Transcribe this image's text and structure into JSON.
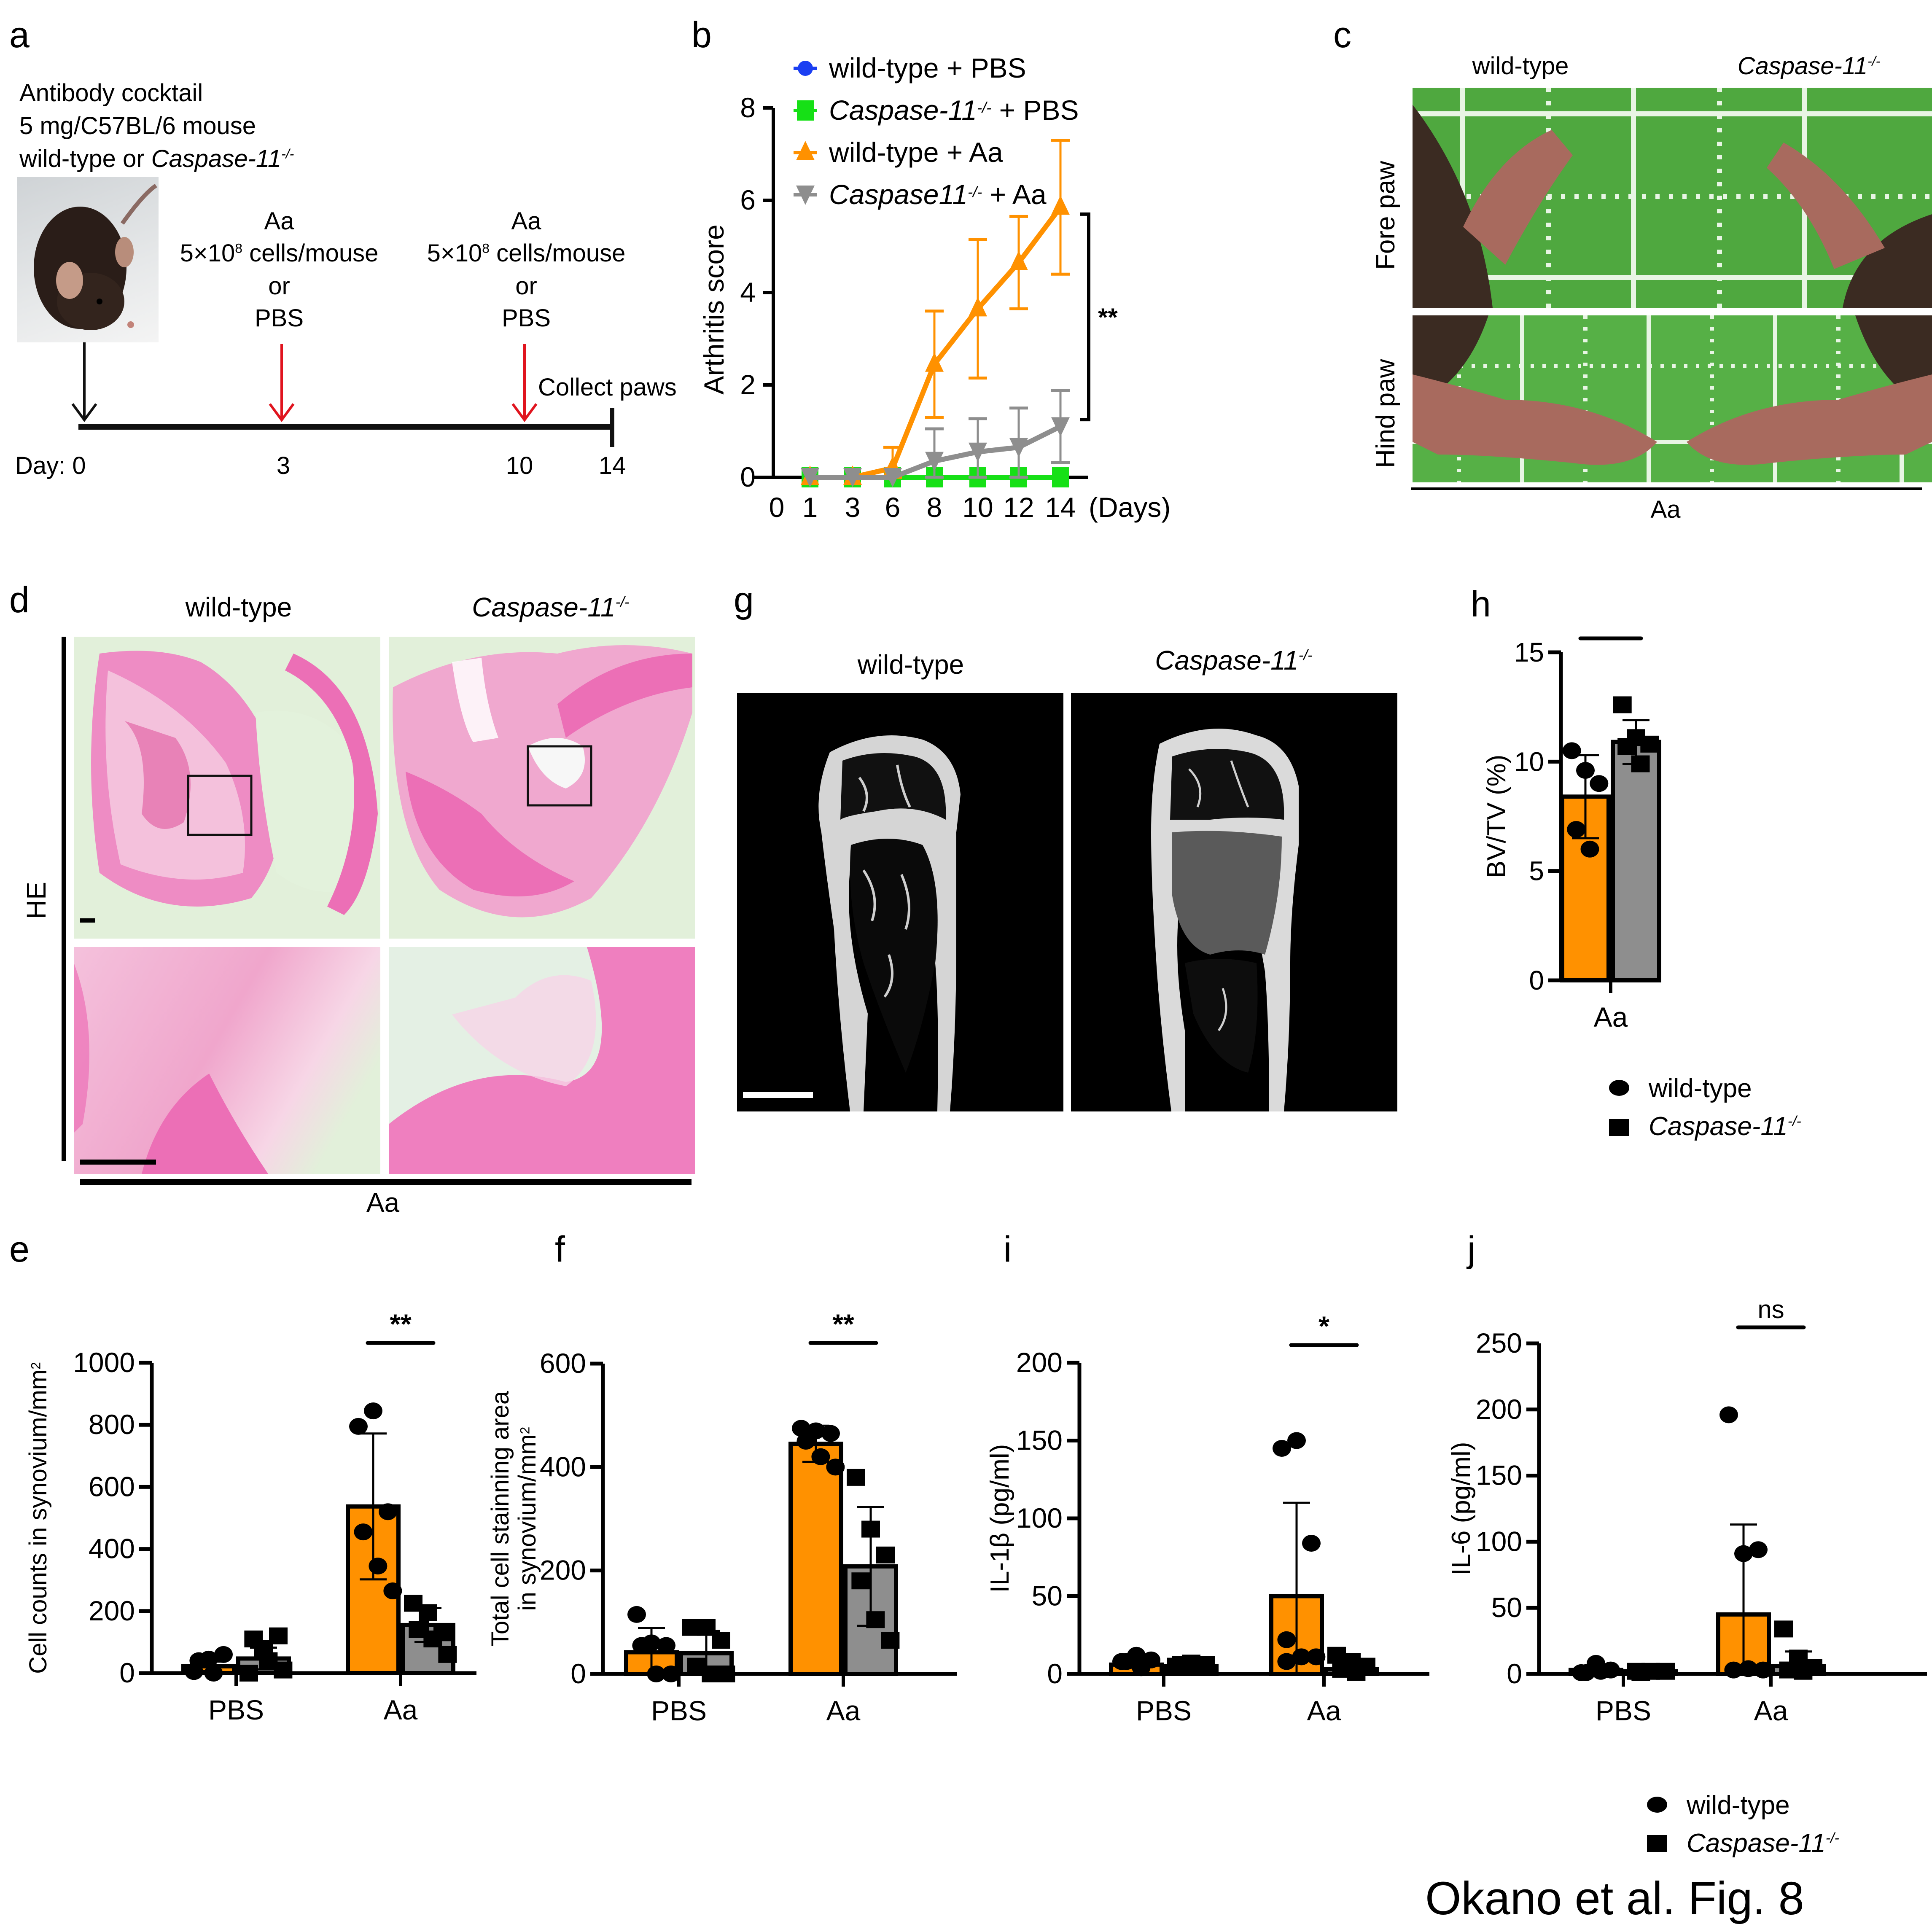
{
  "figure_caption": "Okano et al. Fig. 8",
  "colors": {
    "orange": "#FF9100",
    "gray": "#8E8E8E",
    "green": "#16E016",
    "blue": "#1B3FF2",
    "red": "#E0141E",
    "black": "#000000"
  },
  "panel_a": {
    "label": "a",
    "protocol_lines": [
      "Antibody cocktail",
      "5 mg/C57BL/6 mouse",
      "wild-type or "
    ],
    "genotype_ko": "Caspase-11",
    "ko_sup": "-/-",
    "mouse_photo_icon": "mouse-photo",
    "injection_1": {
      "agent": "Aa",
      "dose": "5×10",
      "dose_exp": "8",
      "dose_unit": " cells/mouse",
      "or": "or",
      "alt": "PBS"
    },
    "injection_2": {
      "agent": "Aa",
      "dose": "5×10",
      "dose_exp": "8",
      "dose_unit": " cells/mouse",
      "or": "or",
      "alt": "PBS"
    },
    "collect_label": "Collect paws",
    "timeline_days": [
      "Day: 0",
      "3",
      "10",
      "14"
    ]
  },
  "panel_c": {
    "label": "c",
    "col_headers": [
      "wild-type",
      "Caspase-11"
    ],
    "ko_sup": "-/-",
    "row_labels": [
      "Fore paw",
      "Hind paw"
    ],
    "group_label": "Aa"
  },
  "panel_d": {
    "label": "d",
    "col_headers": [
      "wild-type",
      "Caspase-11"
    ],
    "ko_sup": "-/-",
    "row_label": "HE",
    "group_label": "Aa"
  },
  "panel_g": {
    "label": "g",
    "col_headers": [
      "wild-type",
      "Caspase-11"
    ],
    "ko_sup": "-/-"
  },
  "legend_bottom": {
    "items": [
      {
        "label": "wild-type",
        "marker": "circle"
      },
      {
        "label": "Caspase-11",
        "sup": "-/-",
        "marker": "square"
      }
    ]
  },
  "chart_data": [
    {
      "panel": "b",
      "type": "line",
      "title": "",
      "xlabel": "(Days)",
      "ylabel": "Arthritis score",
      "x": [
        1,
        3,
        6,
        8,
        10,
        12,
        14
      ],
      "x_ticks": [
        "0",
        "1",
        "3",
        "6",
        "8",
        "10",
        "12",
        "14"
      ],
      "ylim": [
        0,
        8
      ],
      "y_ticks": [
        0,
        2,
        4,
        6,
        8
      ],
      "legend_position": "top-left",
      "series": [
        {
          "name": "wild-type + PBS",
          "marker": "circle",
          "color": "#1B3FF2",
          "values": [
            0,
            0,
            0,
            0,
            0,
            0,
            0
          ],
          "error": [
            0,
            0,
            0,
            0,
            0,
            0,
            0
          ]
        },
        {
          "name": "Caspase-11-/- + PBS",
          "name_main": "Caspase-11",
          "name_sup": "-/-",
          "name_suffix": " + PBS",
          "marker": "square",
          "color": "#16E016",
          "values": [
            0,
            0,
            0,
            0,
            0,
            0,
            0
          ],
          "error": [
            0,
            0,
            0,
            0,
            0,
            0,
            0
          ]
        },
        {
          "name": "wild-type + Aa",
          "marker": "triangle-up",
          "color": "#FF9100",
          "values": [
            0,
            0,
            0.2,
            2.45,
            3.65,
            4.65,
            5.85
          ],
          "error": [
            0,
            0,
            0.45,
            1.15,
            1.5,
            1.0,
            1.45
          ]
        },
        {
          "name": "Caspase11-/- + Aa",
          "name_main": "Caspase11",
          "name_sup": "-/-",
          "name_suffix": " + Aa",
          "marker": "triangle-down",
          "color": "#8E8E8E",
          "values": [
            0,
            0,
            0,
            0.35,
            0.55,
            0.65,
            1.1
          ],
          "error": [
            0,
            0,
            0,
            0.7,
            0.72,
            0.85,
            0.78
          ]
        }
      ],
      "annotations": [
        {
          "text": "**",
          "between": [
            "wild-type + Aa",
            "Caspase11-/- + Aa"
          ],
          "at_x": 14
        }
      ]
    },
    {
      "panel": "h",
      "type": "bar",
      "ylabel": "BV/TV (%)",
      "categories": [
        "Aa"
      ],
      "ylim": [
        0,
        15
      ],
      "y_ticks": [
        0,
        5,
        10,
        15
      ],
      "series": [
        {
          "name": "wild-type",
          "color": "#FF9100",
          "marker": "circle",
          "means": [
            8.4
          ],
          "sd": [
            1.9
          ],
          "points": [
            [
              10.5,
              9.6,
              9.0,
              6.9,
              6.0
            ]
          ]
        },
        {
          "name": "Caspase-11-/-",
          "color": "#8E8E8E",
          "marker": "square",
          "means": [
            10.9
          ],
          "sd": [
            1.0
          ],
          "points": [
            [
              12.6,
              11.1,
              10.8,
              10.7,
              9.9
            ]
          ]
        }
      ],
      "annotations": [
        {
          "text": "*",
          "category": "Aa"
        }
      ]
    },
    {
      "panel": "e",
      "type": "bar",
      "ylabel": "Cell counts in synovium/mm",
      "ylabel_sup": "2",
      "categories": [
        "PBS",
        "Aa"
      ],
      "ylim": [
        0,
        1000
      ],
      "y_ticks": [
        0,
        200,
        400,
        600,
        800,
        1000
      ],
      "series": [
        {
          "name": "wild-type",
          "color": "#FF9100",
          "marker": "circle",
          "means": [
            22,
            537
          ],
          "sd": [
            15,
            235
          ],
          "points": [
            [
              5,
              45,
              60,
              40,
              0
            ],
            [
              795,
              845,
              520,
              455,
              345,
              265
            ]
          ]
        },
        {
          "name": "Caspase-11-/-",
          "color": "#8E8E8E",
          "marker": "square",
          "means": [
            47,
            155
          ],
          "sd": [
            35,
            55
          ],
          "points": [
            [
              0,
              80,
              120,
              110,
              40,
              10
            ],
            [
              225,
              195,
              130,
              140,
              110,
              60
            ]
          ]
        }
      ],
      "annotations": [
        {
          "text": "**",
          "category": "Aa"
        },
        {
          "text": "",
          "category": "PBS"
        }
      ]
    },
    {
      "panel": "f",
      "type": "bar",
      "ylabel": "Total cell  stainning area",
      "ylabel_line2": "in synovium/mm",
      "ylabel_sup": "2",
      "categories": [
        "PBS",
        "Aa"
      ],
      "ylim": [
        0,
        600
      ],
      "y_ticks": [
        0,
        200,
        400,
        600
      ],
      "series": [
        {
          "name": "wild-type",
          "color": "#FF9100",
          "marker": "circle",
          "means": [
            42,
            445
          ],
          "sd": [
            47,
            35
          ],
          "points": [
            [
              115,
              60,
              55,
              55,
              0,
              0
            ],
            [
              475,
              470,
              465,
              450,
              420,
              400
            ]
          ]
        },
        {
          "name": "Caspase-11-/-",
          "color": "#8E8E8E",
          "marker": "square",
          "means": [
            40,
            208
          ],
          "sd": [
            43,
            115
          ],
          "points": [
            [
              90,
              90,
              65,
              15,
              0,
              0
            ],
            [
              380,
              280,
              230,
              180,
              105,
              65
            ]
          ]
        }
      ],
      "annotations": [
        {
          "text": "**",
          "category": "Aa"
        }
      ]
    },
    {
      "panel": "i",
      "type": "bar",
      "ylabel": "IL-1β (pg/ml)",
      "categories": [
        "PBS",
        "Aa"
      ],
      "ylim": [
        0,
        200
      ],
      "y_ticks": [
        0,
        50,
        100,
        150,
        200
      ],
      "series": [
        {
          "name": "wild-type",
          "color": "#FF9100",
          "marker": "circle",
          "means": [
            6,
            50
          ],
          "sd": [
            2,
            60
          ],
          "points": [
            [
              8,
              12,
              9,
              8,
              4
            ],
            [
              145,
              150,
              84,
              22,
              11,
              11,
              8
            ]
          ]
        },
        {
          "name": "Caspase-11-/-",
          "color": "#8E8E8E",
          "marker": "square",
          "means": [
            5,
            3
          ],
          "sd": [
            1,
            3
          ],
          "points": [
            [
              5,
              7,
              6,
              6,
              5
            ],
            [
              12,
              8,
              5,
              3,
              1
            ]
          ]
        }
      ],
      "annotations": [
        {
          "text": "*",
          "category": "Aa"
        }
      ]
    },
    {
      "panel": "j",
      "type": "bar",
      "ylabel": "IL-6 (pg/ml)",
      "categories": [
        "PBS",
        "Aa"
      ],
      "ylim": [
        0,
        250
      ],
      "y_ticks": [
        0,
        50,
        100,
        150,
        200,
        250
      ],
      "series": [
        {
          "name": "wild-type",
          "color": "#FF9100",
          "marker": "circle",
          "means": [
            3,
            45
          ],
          "sd": [
            3,
            68
          ],
          "points": [
            [
              1,
              8,
              3,
              1,
              2
            ],
            [
              196,
              91,
              94,
              3,
              4,
              3
            ]
          ]
        },
        {
          "name": "Caspase-11-/-",
          "color": "#8E8E8E",
          "marker": "square",
          "means": [
            2,
            6
          ],
          "sd": [
            1,
            11
          ],
          "points": [
            [
              2,
              2,
              2,
              1
            ],
            [
              34,
              12,
              5,
              3,
              2
            ]
          ]
        }
      ],
      "annotations": [
        {
          "text": "ns",
          "category": "Aa"
        }
      ]
    }
  ]
}
